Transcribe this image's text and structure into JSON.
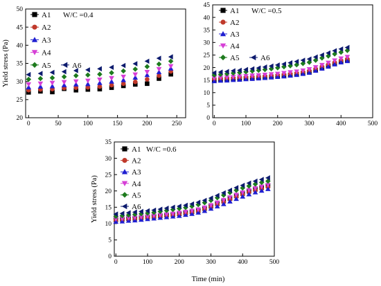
{
  "chart_data": [
    {
      "type": "scatter",
      "id": "chart-wc04",
      "annotation": "W/C =0.4",
      "xlabel": "",
      "ylabel": "Yield stress (Pa)",
      "xlim": [
        -5,
        265
      ],
      "ylim": [
        20,
        50
      ],
      "xticks": [
        0,
        50,
        100,
        150,
        200,
        250
      ],
      "yticks": [
        20,
        25,
        30,
        35,
        40,
        45,
        50
      ],
      "legend_position": "top-left",
      "x": [
        0,
        20,
        40,
        60,
        80,
        100,
        120,
        140,
        160,
        180,
        200,
        220,
        240
      ],
      "series": [
        {
          "name": "A1",
          "marker": "square",
          "color": "#000000",
          "values": [
            27.0,
            27.3,
            27.1,
            28.0,
            27.6,
            27.8,
            27.9,
            28.3,
            28.8,
            29.2,
            29.4,
            30.8,
            32.0
          ]
        },
        {
          "name": "A2",
          "marker": "circle",
          "color": "#c0392b",
          "values": [
            27.6,
            27.8,
            27.9,
            28.2,
            28.3,
            28.4,
            28.6,
            29.0,
            29.4,
            29.9,
            30.6,
            31.6,
            32.8
          ]
        },
        {
          "name": "A3",
          "marker": "triangle-up",
          "color": "#1f1fd1",
          "values": [
            28.4,
            28.6,
            28.7,
            29.0,
            29.2,
            29.3,
            29.6,
            30.0,
            30.4,
            31.1,
            31.8,
            32.6,
            33.6
          ]
        },
        {
          "name": "A4",
          "marker": "triangle-down",
          "color": "#d63fd6",
          "values": [
            29.2,
            29.4,
            29.6,
            29.8,
            30.0,
            30.2,
            30.5,
            30.9,
            31.3,
            31.9,
            32.6,
            33.4,
            34.2
          ]
        },
        {
          "name": "A5",
          "marker": "diamond",
          "color": "#1e7b1e",
          "values": [
            30.6,
            30.8,
            31.0,
            31.3,
            31.6,
            31.8,
            32.0,
            32.4,
            32.9,
            33.4,
            34.1,
            34.8,
            35.6
          ]
        },
        {
          "name": "A6",
          "marker": "triangle-left",
          "color": "#0d1b6e",
          "values": [
            31.9,
            32.2,
            32.5,
            32.7,
            33.0,
            33.2,
            33.5,
            33.9,
            34.4,
            34.9,
            35.6,
            36.4,
            36.8
          ]
        }
      ]
    },
    {
      "type": "scatter",
      "id": "chart-wc05",
      "annotation": "W/C =0.5",
      "xlabel": "",
      "ylabel": "",
      "xlim": [
        -5,
        500
      ],
      "ylim": [
        0,
        45
      ],
      "xticks": [
        0,
        100,
        200,
        300,
        400,
        500
      ],
      "yticks": [
        0,
        5,
        10,
        15,
        20,
        25,
        30,
        35,
        40,
        45
      ],
      "legend_position": "top-left",
      "x": [
        0,
        20,
        40,
        60,
        80,
        100,
        120,
        140,
        160,
        180,
        200,
        220,
        240,
        260,
        280,
        300,
        320,
        340,
        360,
        380,
        400,
        420
      ],
      "series": [
        {
          "name": "A1",
          "marker": "square",
          "color": "#000000",
          "values": [
            15.0,
            15.2,
            15.3,
            15.4,
            15.6,
            15.7,
            15.8,
            16.0,
            16.1,
            16.3,
            16.5,
            16.7,
            17.0,
            17.3,
            17.7,
            18.1,
            18.9,
            19.8,
            20.6,
            21.5,
            22.3,
            22.8
          ]
        },
        {
          "name": "A2",
          "marker": "circle",
          "color": "#c0392b",
          "values": [
            15.4,
            15.6,
            15.7,
            15.8,
            16.0,
            16.1,
            16.3,
            16.4,
            16.6,
            16.8,
            17.0,
            17.2,
            17.5,
            17.8,
            18.2,
            18.7,
            19.5,
            20.4,
            21.2,
            22.0,
            22.8,
            23.4
          ]
        },
        {
          "name": "A3",
          "marker": "triangle-up",
          "color": "#1f1fd1",
          "values": [
            14.6,
            14.8,
            14.9,
            15.1,
            15.2,
            15.4,
            15.5,
            15.7,
            15.9,
            16.1,
            16.3,
            16.5,
            16.8,
            17.1,
            17.5,
            18.0,
            18.8,
            19.6,
            20.4,
            21.3,
            22.1,
            22.6
          ]
        },
        {
          "name": "A4",
          "marker": "triangle-down",
          "color": "#d63fd6",
          "values": [
            15.8,
            16.0,
            16.1,
            16.3,
            16.4,
            16.6,
            16.8,
            16.9,
            17.1,
            17.3,
            17.5,
            17.8,
            18.1,
            18.4,
            18.8,
            19.3,
            20.1,
            21.0,
            21.9,
            22.8,
            23.6,
            24.2
          ]
        },
        {
          "name": "A5",
          "marker": "diamond",
          "color": "#1e7b1e",
          "values": [
            17.0,
            17.3,
            17.5,
            17.8,
            18.0,
            18.3,
            18.6,
            18.9,
            19.2,
            19.5,
            19.9,
            20.3,
            20.7,
            21.1,
            21.6,
            22.1,
            22.9,
            23.8,
            24.6,
            25.4,
            26.1,
            26.8
          ]
        },
        {
          "name": "A6",
          "marker": "triangle-left",
          "color": "#0d1b6e",
          "values": [
            17.9,
            18.2,
            18.4,
            18.7,
            18.9,
            19.2,
            19.5,
            19.8,
            20.2,
            20.6,
            21.0,
            21.4,
            21.9,
            22.4,
            22.9,
            23.4,
            24.2,
            25.0,
            25.8,
            26.7,
            27.4,
            28.0
          ]
        }
      ]
    },
    {
      "type": "scatter",
      "id": "chart-wc06",
      "annotation": "W/C =0.6",
      "xlabel": "Time (min)",
      "ylabel": "Yield stress (Pa)",
      "xlim": [
        -5,
        500
      ],
      "ylim": [
        0,
        35
      ],
      "xticks": [
        0,
        100,
        200,
        300,
        400,
        500
      ],
      "yticks": [
        0,
        5,
        10,
        15,
        20,
        25,
        30,
        35
      ],
      "legend_position": "top-left",
      "x": [
        0,
        20,
        40,
        60,
        80,
        100,
        120,
        140,
        160,
        180,
        200,
        220,
        240,
        260,
        280,
        300,
        320,
        340,
        360,
        380,
        400,
        420,
        440,
        460,
        480
      ],
      "series": [
        {
          "name": "A1",
          "marker": "square",
          "color": "#000000",
          "values": [
            11.2,
            11.3,
            11.5,
            11.6,
            11.8,
            12.0,
            12.2,
            12.4,
            12.6,
            12.8,
            13.0,
            13.3,
            13.6,
            14.0,
            14.6,
            15.3,
            16.1,
            16.9,
            17.7,
            18.5,
            19.2,
            19.9,
            20.5,
            21.0,
            21.6
          ]
        },
        {
          "name": "A2",
          "marker": "circle",
          "color": "#c0392b",
          "values": [
            11.0,
            11.1,
            11.3,
            11.4,
            11.6,
            11.8,
            12.0,
            12.2,
            12.4,
            12.6,
            12.8,
            13.1,
            13.4,
            13.8,
            14.4,
            15.1,
            15.9,
            16.6,
            17.4,
            18.2,
            18.9,
            19.6,
            20.2,
            20.7,
            21.2
          ]
        },
        {
          "name": "A3",
          "marker": "triangle-up",
          "color": "#1f1fd1",
          "values": [
            10.6,
            10.7,
            10.9,
            11.0,
            11.2,
            11.4,
            11.6,
            11.8,
            12.0,
            12.2,
            12.4,
            12.7,
            13.0,
            13.4,
            13.9,
            14.6,
            15.3,
            16.0,
            16.8,
            17.6,
            18.3,
            19.0,
            19.6,
            20.1,
            20.6
          ]
        },
        {
          "name": "A4",
          "marker": "triangle-down",
          "color": "#d63fd6",
          "values": [
            11.4,
            11.5,
            11.7,
            11.8,
            12.0,
            12.2,
            12.4,
            12.6,
            12.8,
            13.0,
            13.3,
            13.6,
            13.9,
            14.3,
            14.9,
            15.6,
            16.4,
            17.2,
            18.0,
            18.8,
            19.5,
            20.2,
            20.8,
            21.3,
            21.8
          ]
        },
        {
          "name": "A5",
          "marker": "diamond",
          "color": "#1e7b1e",
          "values": [
            12.2,
            12.4,
            12.6,
            12.8,
            13.0,
            13.2,
            13.4,
            13.7,
            14.0,
            14.3,
            14.6,
            14.9,
            15.3,
            15.8,
            16.4,
            17.1,
            17.9,
            18.7,
            19.5,
            20.2,
            20.9,
            21.5,
            22.1,
            22.6,
            23.0
          ]
        },
        {
          "name": "A6",
          "marker": "triangle-left",
          "color": "#0d1b6e",
          "values": [
            12.9,
            13.1,
            13.3,
            13.5,
            13.7,
            13.9,
            14.1,
            14.4,
            14.7,
            15.0,
            15.3,
            15.6,
            16.0,
            16.5,
            17.1,
            17.8,
            18.6,
            19.4,
            20.2,
            21.0,
            21.7,
            22.4,
            23.0,
            23.5,
            24.0
          ]
        }
      ]
    }
  ]
}
